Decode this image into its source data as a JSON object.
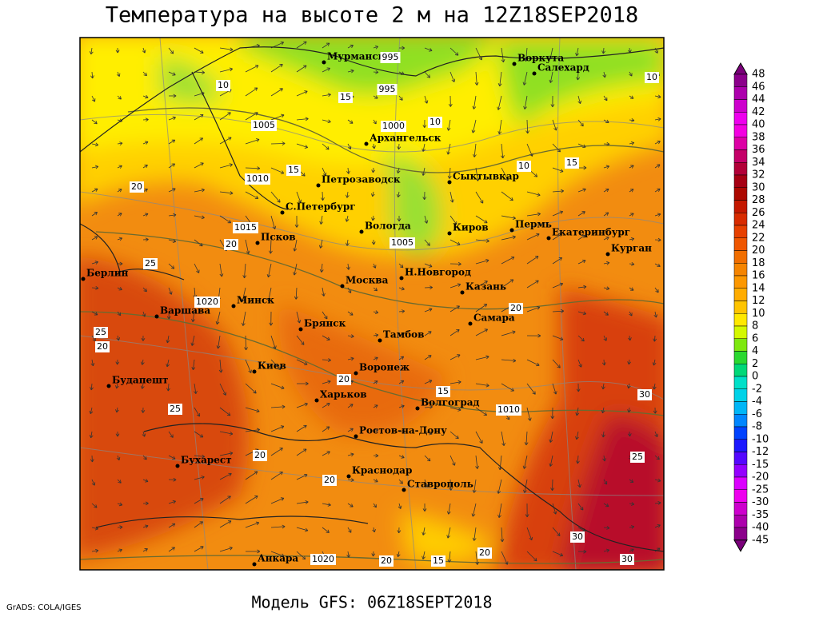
{
  "header": {
    "title": "Температура на высоте 2 м на 12Z18SEP2018"
  },
  "map": {
    "cities": [
      "Мурманск",
      "Воркута",
      "Салехард",
      "Архангельск",
      "Петрозаводск",
      "Сыктывкар",
      "С.Петербург",
      "Вологда",
      "Киров",
      "Пермь",
      "Екатеринбург",
      "Курган",
      "Псков",
      "Н.Новгород",
      "Москва",
      "Казань",
      "Берлин",
      "Минск",
      "Варшава",
      "Самара",
      "Брянск",
      "Тамбов",
      "Воронеж",
      "Киев",
      "Харьков",
      "Будапешт",
      "Волгоград",
      "Ростов-на-Дону",
      "Бухарест",
      "Краснодар",
      "Ставрополь",
      "Анкара"
    ],
    "contour_labels": [
      "995",
      "995",
      "1000",
      "1005",
      "1010",
      "1015",
      "1020",
      "1005",
      "1010",
      "1020",
      "10",
      "10",
      "10",
      "15",
      "15",
      "15",
      "10",
      "20",
      "20",
      "25",
      "25",
      "20",
      "20",
      "15",
      "20",
      "30",
      "25",
      "20",
      "25",
      "30",
      "30",
      "20",
      "15",
      "20",
      "20"
    ]
  },
  "colorbar": {
    "labels": [
      "48",
      "46",
      "44",
      "42",
      "40",
      "38",
      "36",
      "34",
      "32",
      "30",
      "28",
      "26",
      "24",
      "22",
      "20",
      "18",
      "16",
      "14",
      "12",
      "10",
      "8",
      "6",
      "4",
      "2",
      "0",
      "-2",
      "-4",
      "-6",
      "-8",
      "-10",
      "-12",
      "-15",
      "-20",
      "-25",
      "-30",
      "-35",
      "-40",
      "-45"
    ]
  },
  "footer": {
    "credit": "GrADS: COLA/IGES",
    "model": "Модель GFS: 06Z18SEPT2018"
  }
}
